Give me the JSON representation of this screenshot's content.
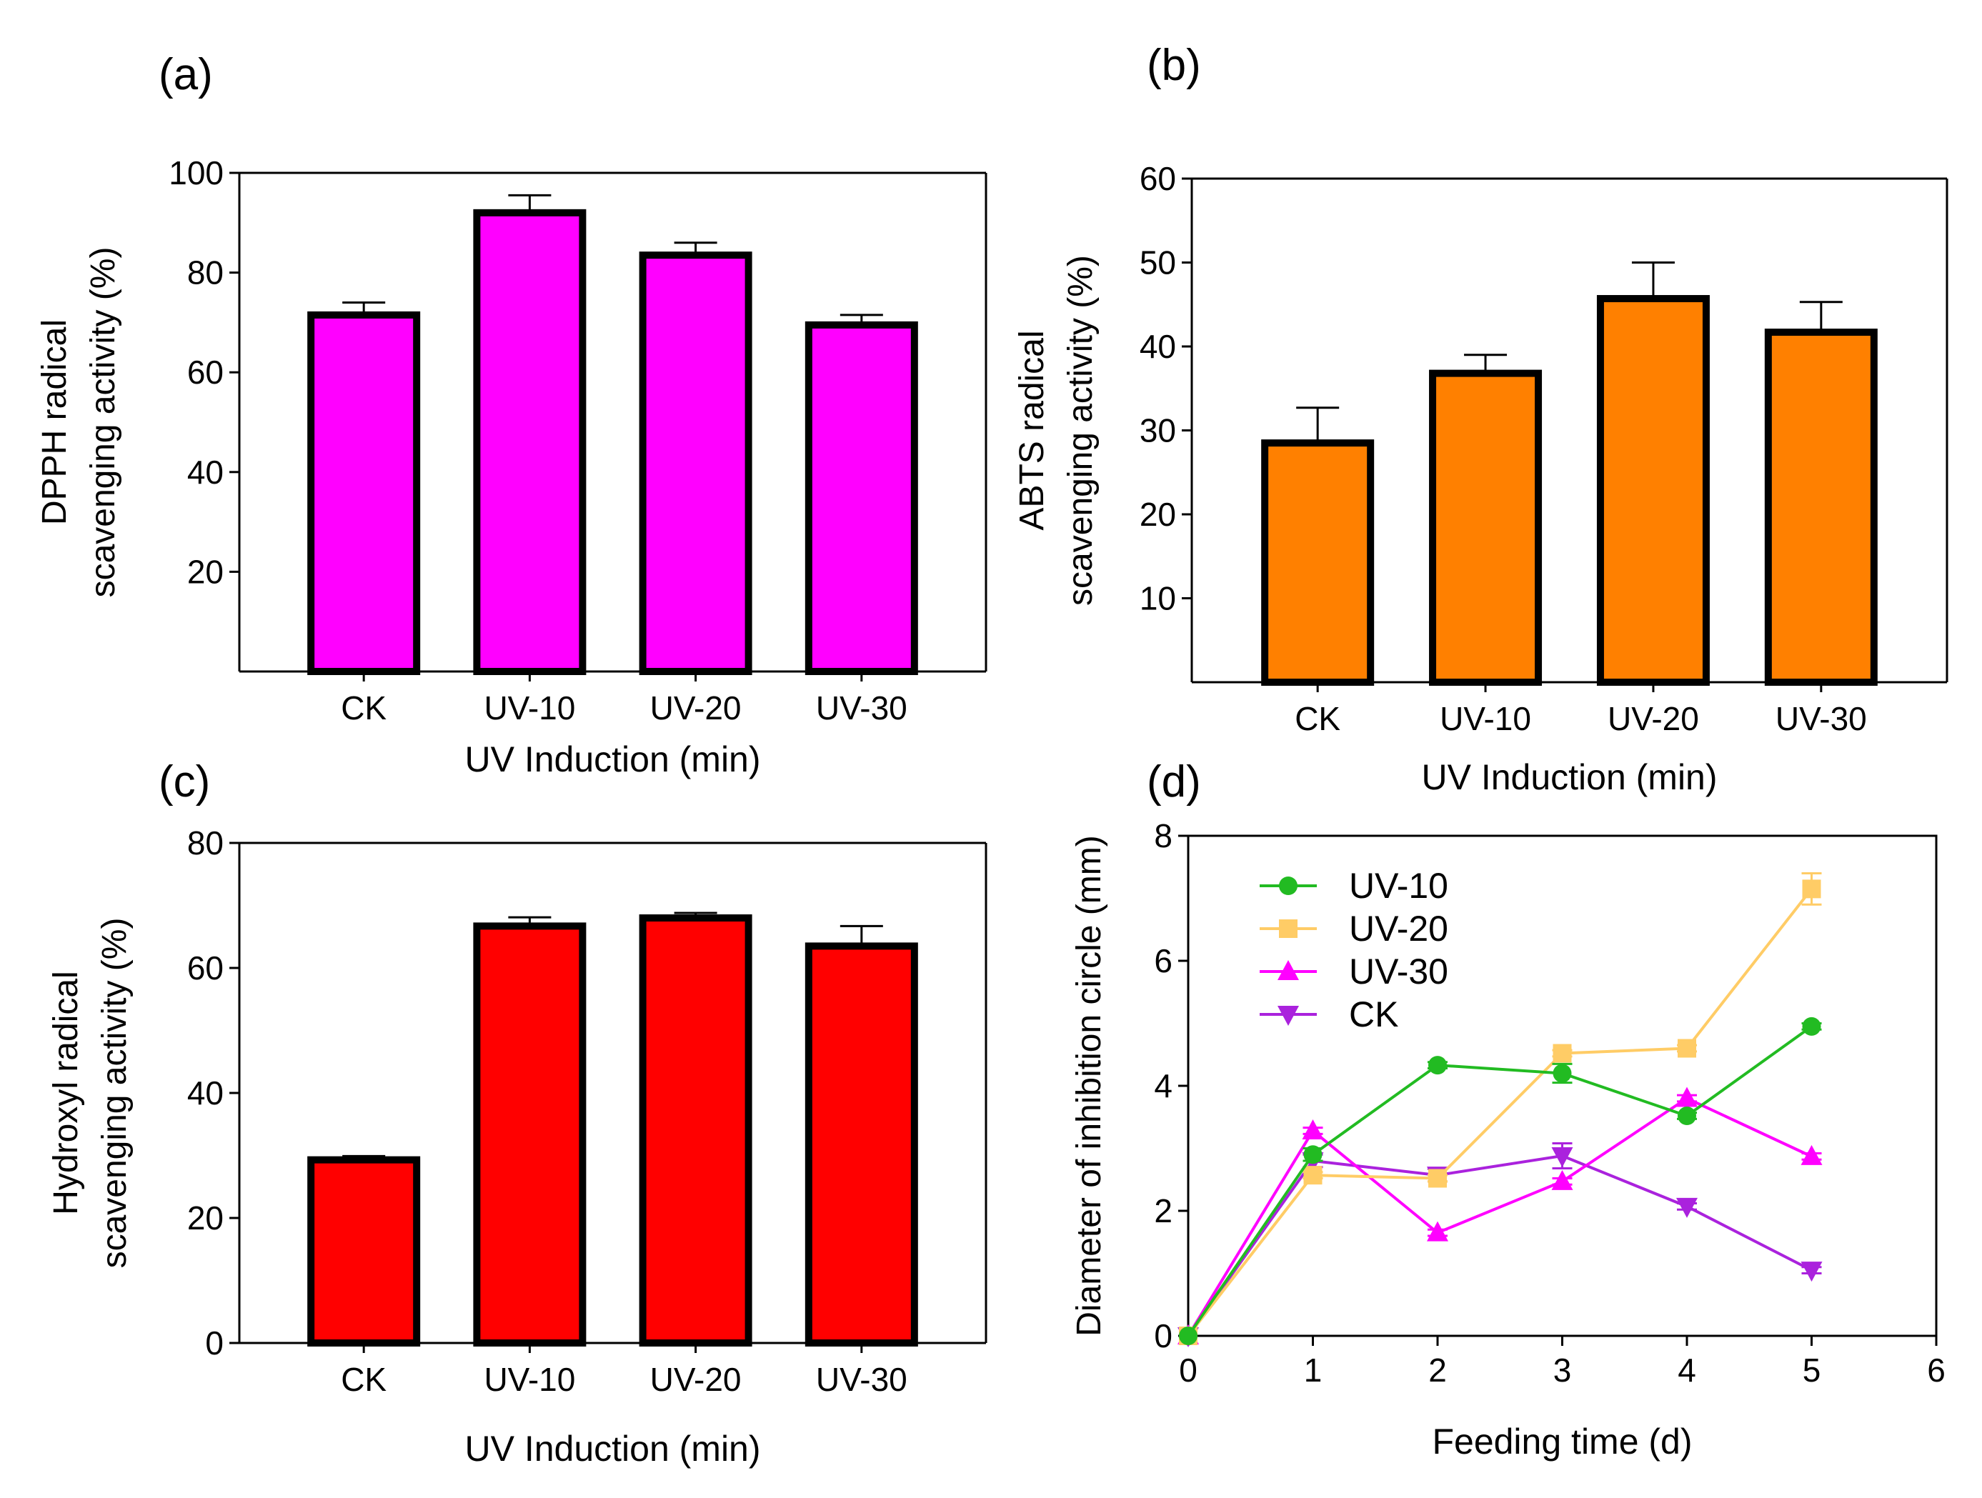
{
  "chart_data": [
    {
      "panel": "(a)",
      "type": "bar",
      "title": "",
      "categories": [
        "CK",
        "UV-10",
        "UV-20",
        "UV-30"
      ],
      "values": [
        71.5,
        92.0,
        83.5,
        69.5
      ],
      "errors": [
        2.5,
        3.5,
        2.5,
        2.0
      ],
      "xlabel": "UV Induction  (min)",
      "ylabel_lines": [
        "DPPH  radical",
        "scavenging activity (%)"
      ],
      "ylim": [
        0,
        100
      ],
      "yticks": [
        20,
        40,
        60,
        80,
        100
      ],
      "bar_color": "#ff00ff"
    },
    {
      "panel": "(b)",
      "type": "bar",
      "title": "",
      "categories": [
        "CK",
        "UV-10",
        "UV-20",
        "UV-30"
      ],
      "values": [
        28.5,
        36.8,
        45.7,
        41.7
      ],
      "errors": [
        4.2,
        2.2,
        4.3,
        3.6
      ],
      "xlabel": "UV Induction  (min)",
      "ylabel_lines": [
        "ABTS  radical",
        "scavenging activity (%)"
      ],
      "ylim": [
        0,
        60
      ],
      "yticks": [
        10,
        20,
        30,
        40,
        50,
        60
      ],
      "bar_color": "#ff8000"
    },
    {
      "panel": "(c)",
      "type": "bar",
      "title": "",
      "categories": [
        "CK",
        "UV-10",
        "UV-20",
        "UV-30"
      ],
      "values": [
        29.3,
        66.7,
        68.0,
        63.5
      ],
      "errors": [
        0.6,
        1.4,
        0.8,
        3.2
      ],
      "xlabel": "UV Induction  (min)",
      "ylabel_lines": [
        "Hydroxyl radical",
        "scavenging activity (%)"
      ],
      "ylim": [
        0,
        80
      ],
      "yticks": [
        0,
        20,
        40,
        60,
        80
      ],
      "bar_color": "#ff0000"
    },
    {
      "panel": "(d)",
      "type": "line",
      "title": "",
      "x": [
        0,
        1,
        2,
        3,
        4,
        5
      ],
      "xlabel": "Feeding time (d)",
      "ylabel": "Diameter of inhibition circle (mm)",
      "xlim": [
        0,
        6
      ],
      "ylim": [
        0,
        8
      ],
      "xticks": [
        0,
        1,
        2,
        3,
        4,
        5,
        6
      ],
      "yticks": [
        0,
        2,
        4,
        6,
        8
      ],
      "legend_position": "top-left",
      "series": [
        {
          "name": "UV-10",
          "values": [
            0,
            2.9,
            4.33,
            4.2,
            3.52,
            4.95
          ],
          "errors": [
            0,
            0.1,
            0.05,
            0.15,
            0.05,
            0.05
          ],
          "color": "#22bb22",
          "marker": "circle"
        },
        {
          "name": "UV-20",
          "values": [
            0,
            2.57,
            2.52,
            4.52,
            4.6,
            7.15
          ],
          "errors": [
            0,
            0.05,
            0.05,
            0.05,
            0.05,
            0.25
          ],
          "color": "#ffcc66",
          "marker": "square"
        },
        {
          "name": "UV-30",
          "values": [
            0,
            3.28,
            1.65,
            2.47,
            3.8,
            2.87
          ],
          "errors": [
            0,
            0.05,
            0.05,
            0.05,
            0.05,
            0.05
          ],
          "color": "#ff00ff",
          "marker": "triangle-up"
        },
        {
          "name": "CK",
          "values": [
            0,
            2.8,
            2.57,
            2.88,
            2.07,
            1.05
          ],
          "errors": [
            0,
            0.1,
            0.1,
            0.2,
            0.05,
            0.05
          ],
          "color": "#aa22dd",
          "marker": "triangle-down"
        }
      ]
    }
  ]
}
